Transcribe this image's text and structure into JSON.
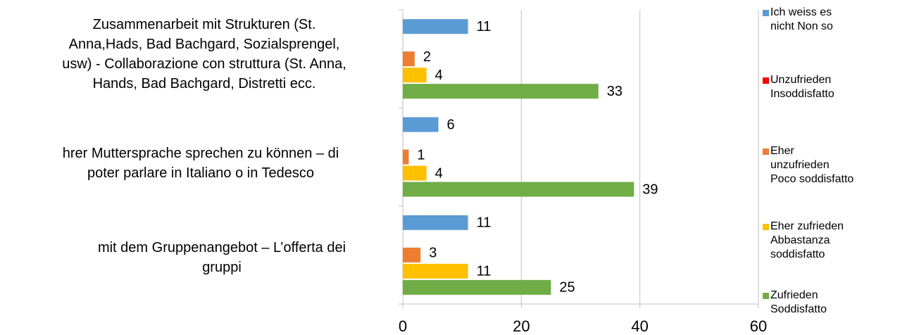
{
  "chart_data": {
    "type": "bar",
    "orientation": "horizontal",
    "categories": [
      "Zusammenarbeit mit  Strukturen (St.\nAnna,Hads, Bad Bachgard,  Sozialsprengel,\nusw) - Collaborazione con struttura (St. Anna,\nHands, Bad Bachgard, Distretti ecc.",
      "hrer Muttersprache sprechen zu können –  di\npoter parlare in Italiano o in Tedesco",
      "mit dem Gruppenangebot – L’offerta dei\ngruppi"
    ],
    "series": [
      {
        "name": "Ich weiss es\nnicht Non so",
        "color": "#5b9bd5",
        "values": [
          11,
          6,
          11
        ]
      },
      {
        "name": "Unzufrieden\nInsoddisfatto",
        "color": "#ff0000",
        "values": [
          null,
          null,
          null
        ]
      },
      {
        "name": "Eher\nunzufrieden\nPoco soddisfatto",
        "color": "#ed7d31",
        "values": [
          2,
          1,
          3
        ]
      },
      {
        "name": "Eher zufrieden\nAbbastanza\nsoddisfatto",
        "color": "#ffc000",
        "values": [
          4,
          4,
          11
        ]
      },
      {
        "name": "Zufrieden\nSoddisfatto",
        "color": "#70ad47",
        "values": [
          33,
          39,
          25
        ]
      }
    ],
    "xlim": [
      0,
      60
    ],
    "xticks": [
      0,
      20,
      40,
      60
    ],
    "grid": true,
    "legend": "right"
  }
}
